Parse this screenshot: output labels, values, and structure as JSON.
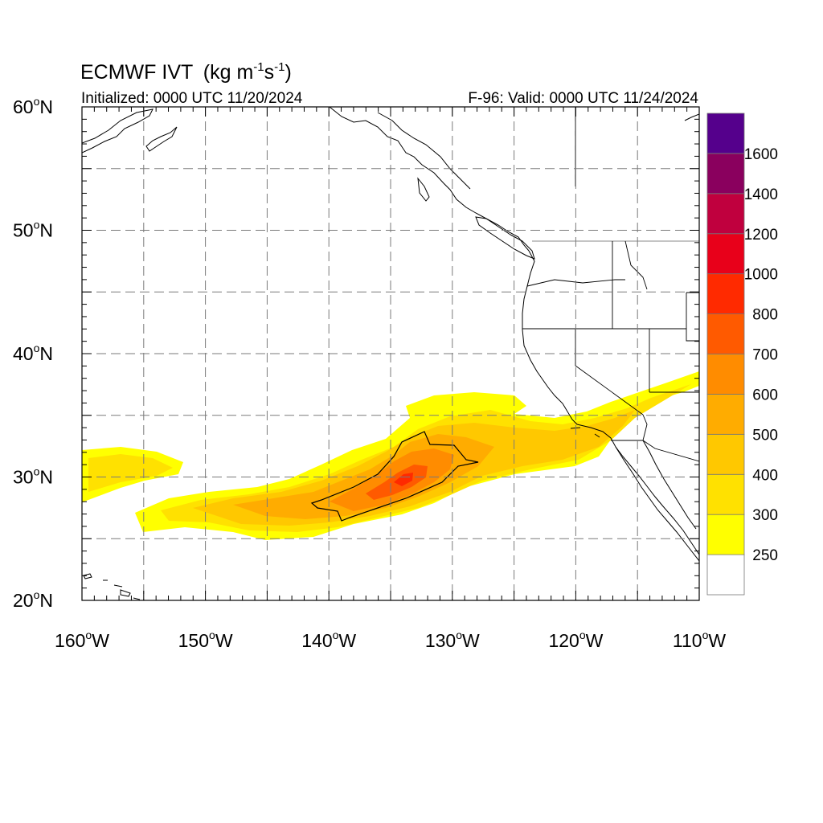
{
  "title": {
    "model": "ECMWF IVT",
    "units_open": "(kg m",
    "units_exp1": "-1",
    "units_mid": "s",
    "units_exp2": "-1",
    "units_close": ")"
  },
  "initialized": "Initialized: 0000 UTC 11/20/2024",
  "valid": "F-96: Valid: 0000 UTC 11/24/2024",
  "map": {
    "lon_range": [
      -160,
      -110
    ],
    "lat_range": [
      20,
      60
    ],
    "lon_ticks": [
      {
        "value": -160,
        "num": "160",
        "hemi": "W"
      },
      {
        "value": -150,
        "num": "150",
        "hemi": "W"
      },
      {
        "value": -140,
        "num": "140",
        "hemi": "W"
      },
      {
        "value": -130,
        "num": "130",
        "hemi": "W"
      },
      {
        "value": -120,
        "num": "120",
        "hemi": "W"
      },
      {
        "value": -110,
        "num": "110",
        "hemi": "W"
      }
    ],
    "lat_ticks": [
      {
        "value": 60,
        "num": "60",
        "hemi": "N"
      },
      {
        "value": 50,
        "num": "50",
        "hemi": "N"
      },
      {
        "value": 40,
        "num": "40",
        "hemi": "N"
      },
      {
        "value": 30,
        "num": "30",
        "hemi": "N"
      },
      {
        "value": 20,
        "num": "20",
        "hemi": "N"
      }
    ],
    "degree_symbol": "o",
    "grid_lon_step": 5,
    "grid_lat_step": 5
  },
  "colorbar": {
    "levels": [
      "250",
      "300",
      "400",
      "500",
      "600",
      "700",
      "800",
      "1000",
      "1200",
      "1400",
      "1600"
    ],
    "colors": [
      "#ffffff",
      "#ffff00",
      "#ffe100",
      "#ffc800",
      "#ffac00",
      "#ff8c00",
      "#ff5a00",
      "#ff2a00",
      "#e8001a",
      "#c0003e",
      "#8a005e",
      "#55008c"
    ]
  },
  "colors": {
    "coast": "#000000",
    "grid": "#7a7a7a",
    "border": "#8a8a8a"
  }
}
